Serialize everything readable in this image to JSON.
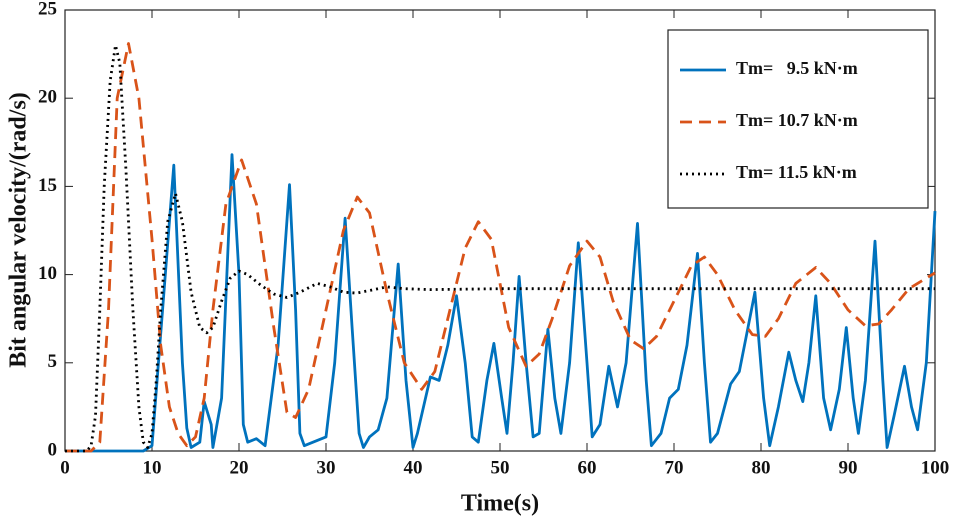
{
  "chart_data": {
    "type": "line",
    "xlabel": "Time(s)",
    "ylabel": "Bit angular velocity/(rad/s)",
    "xlim": [
      0,
      100
    ],
    "xticks": [
      0,
      10,
      20,
      30,
      40,
      50,
      60,
      70,
      80,
      90,
      100
    ],
    "ylim": [
      0,
      25
    ],
    "yticks": [
      0,
      5,
      10,
      15,
      20,
      25
    ],
    "legend": "upper right",
    "grid": false,
    "series": [
      {
        "name": "Tm=   9.5 kN·m",
        "color": "#0072bd",
        "style": "solid",
        "x": [
          0,
          9,
          10,
          12.5,
          13.5,
          14,
          14.5,
          15.5,
          16,
          16.8,
          17,
          18,
          19.2,
          20,
          20.5,
          21,
          22,
          23,
          24.5,
          25.8,
          26.5,
          27,
          27.5,
          29,
          30,
          31,
          32.2,
          33,
          33.8,
          34.3,
          35,
          36,
          37,
          38.3,
          39.2,
          40,
          40.5,
          42,
          43,
          44,
          45,
          46,
          46.8,
          47.5,
          48.5,
          49.3,
          50.2,
          50.8,
          51.5,
          52.2,
          53,
          53.8,
          54.5,
          55.5,
          56.3,
          57,
          58,
          59,
          60,
          60.6,
          61.5,
          62.5,
          63.5,
          64.5,
          65.8,
          66.8,
          67.4,
          68.5,
          69.5,
          70.5,
          71.5,
          72.7,
          73.5,
          74.2,
          75,
          76.5,
          77.5,
          78.5,
          79.3,
          80.3,
          81,
          82,
          83.2,
          84,
          84.8,
          85.5,
          86.3,
          87.2,
          88,
          89,
          89.8,
          90.6,
          91.2,
          92,
          93.1,
          94,
          94.5,
          95.3,
          96.5,
          97.3,
          98,
          99,
          100
        ],
        "values": [
          0,
          0,
          0.3,
          16.2,
          5,
          1.3,
          0.2,
          0.5,
          2.8,
          1.5,
          0.2,
          3,
          16.8,
          10,
          1.5,
          0.5,
          0.7,
          0.3,
          6,
          15.1,
          8,
          1,
          0.3,
          0.6,
          0.8,
          5,
          13.2,
          7,
          1,
          0.2,
          0.8,
          1.2,
          3,
          10.6,
          4,
          0.2,
          1,
          4.2,
          4,
          6,
          8.8,
          5,
          0.8,
          0.5,
          4,
          6.1,
          3,
          1,
          5,
          9.9,
          5,
          0.8,
          1,
          6.9,
          3,
          1,
          5,
          11.8,
          5,
          0.8,
          1.5,
          4.8,
          2.5,
          5,
          12.9,
          4,
          0.3,
          1,
          3,
          3.5,
          6,
          11.2,
          5,
          0.5,
          1,
          3.8,
          4.5,
          7,
          9,
          3,
          0.3,
          2.5,
          5.6,
          4,
          2.8,
          5,
          8.8,
          3,
          1.2,
          3.5,
          7,
          3,
          1,
          4,
          11.9,
          4,
          0.2,
          2,
          4.8,
          2.5,
          1.2,
          5,
          13.6
        ]
      },
      {
        "name": "Tm= 10.7 kN·m",
        "color": "#d95319",
        "style": "dashed",
        "x": [
          0,
          3,
          4,
          5,
          6,
          7.3,
          8.5,
          10,
          11,
          12,
          13,
          14,
          15,
          16,
          17,
          18.5,
          20.3,
          22,
          24,
          25.5,
          26.5,
          28,
          30,
          32,
          33.6,
          35,
          37,
          39,
          41,
          42.5,
          44,
          46,
          47.5,
          49,
          51,
          53,
          54.5,
          56,
          58,
          60,
          61.5,
          63,
          65,
          66.5,
          68,
          70,
          72,
          73.5,
          75,
          77,
          79,
          80.5,
          82,
          84,
          86.3,
          88,
          90,
          92,
          93.5,
          95,
          97,
          100
        ],
        "values": [
          0,
          0,
          0.5,
          8,
          20,
          23.1,
          20,
          12,
          6,
          2.5,
          1,
          0.3,
          0.8,
          3,
          8,
          14,
          16.5,
          14,
          7,
          2.2,
          1.9,
          3.5,
          8,
          12.5,
          14.4,
          13.5,
          9,
          5,
          3.5,
          4.5,
          7.5,
          11.5,
          13,
          12,
          7,
          4.8,
          5.5,
          7.5,
          10.5,
          11.9,
          11,
          8.5,
          6.3,
          5.8,
          6.5,
          8.5,
          10.5,
          11,
          10,
          8,
          6.6,
          6.5,
          7.5,
          9.5,
          10.4,
          9.5,
          8,
          7.1,
          7.2,
          8,
          9.2,
          10.1
        ]
      },
      {
        "name": "Tm= 11.5 kN·m",
        "color": "#000000",
        "style": "dotted",
        "x": [
          0,
          2.5,
          3,
          3.5,
          4,
          4.5,
          5.2,
          5.8,
          6.3,
          7,
          7.8,
          8.5,
          9,
          9.5,
          10,
          10.5,
          11,
          11.8,
          12.7,
          13.5,
          14.5,
          15.5,
          16.3,
          17,
          18,
          19,
          20,
          21,
          22.5,
          24,
          25.5,
          27,
          29,
          30.5,
          32,
          33.5,
          35,
          37,
          39,
          42,
          50,
          60,
          70,
          80,
          90,
          100
        ],
        "values": [
          0,
          0,
          0.3,
          2,
          8,
          15,
          21,
          23,
          22,
          16,
          8,
          2.5,
          0.5,
          0.2,
          1,
          4,
          8,
          13,
          14.6,
          13,
          9,
          7,
          6.7,
          7,
          8.5,
          9.8,
          10.2,
          10,
          9.4,
          8.9,
          8.7,
          9,
          9.5,
          9.3,
          9.0,
          8.95,
          9.1,
          9.3,
          9.2,
          9.15,
          9.2,
          9.2,
          9.2,
          9.2,
          9.2,
          9.2
        ]
      }
    ]
  }
}
